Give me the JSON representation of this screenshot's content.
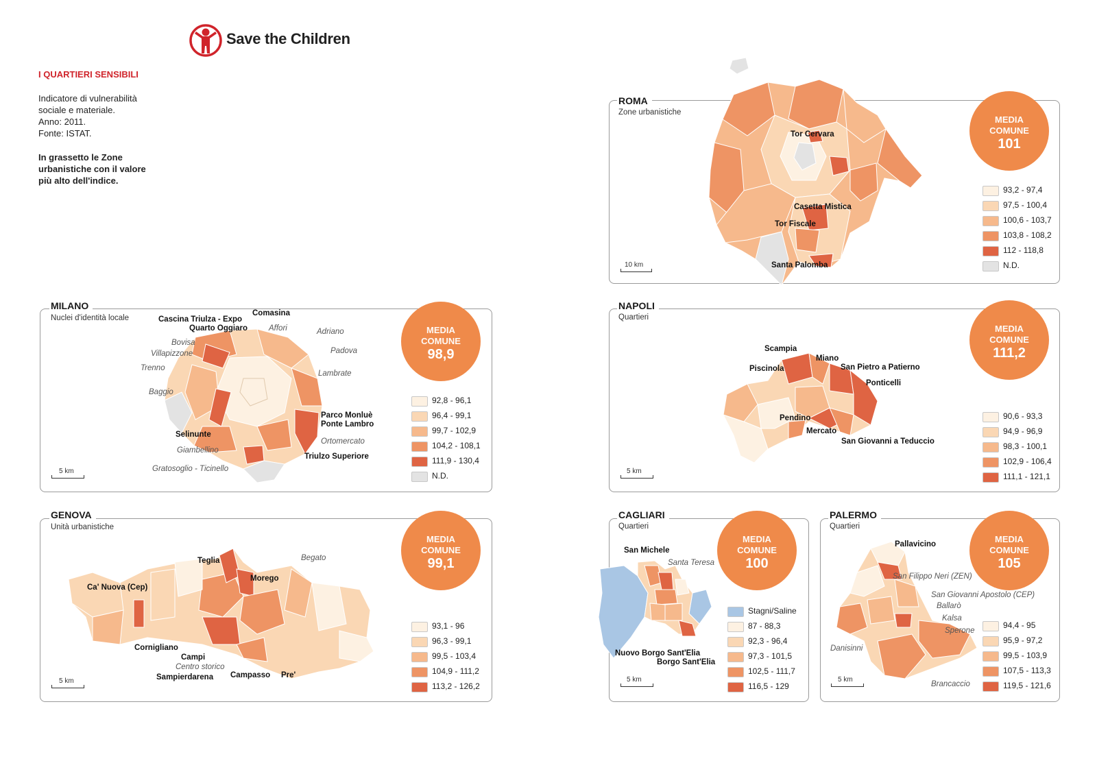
{
  "header": {
    "logo_text": "Save the Children",
    "brand_color": "#d0242b",
    "section_title": "I QUARTIERI SENSIBILI",
    "description_lines": [
      "Indicatore di vulnerabilità",
      "sociale e materiale.",
      "Anno: 2011.",
      "Fonte: ISTAT."
    ],
    "note_lines": [
      "In grassetto le Zone",
      "urbanistiche con il valore",
      "più alto dell'indice."
    ]
  },
  "palette": {
    "class1": "#fdf1e2",
    "class2": "#fad7b4",
    "class3": "#f6b98c",
    "class4": "#ee9464",
    "class5": "#df6443",
    "nd": "#e3e3e3",
    "stagni": "#a9c6e4",
    "accent": "#ef8a4a"
  },
  "panels": {
    "roma": {
      "city": "ROMA",
      "subtitle": "Zone urbanistiche",
      "media_label": [
        "MEDIA",
        "COMUNE"
      ],
      "media_value": "101",
      "legend": [
        "93,2 - 97,4",
        "97,5 - 100,4",
        "100,6 - 103,7",
        "103,8 - 108,2",
        "112 - 118,8",
        "N.D."
      ],
      "scale": "10 km",
      "labels_bold": [
        "Tor Cervara",
        "Casetta Mistica",
        "Tor Fiscale",
        "Santa Palomba"
      ]
    },
    "milano": {
      "city": "MILANO",
      "subtitle": "Nuclei d'identità locale",
      "media_label": [
        "MEDIA",
        "COMUNE"
      ],
      "media_value": "98,9",
      "legend": [
        "92,8 - 96,1",
        "96,4 - 99,1",
        "99,7 - 102,9",
        "104,2 - 108,1",
        "111,9 - 130,4",
        "N.D."
      ],
      "scale": "5 km",
      "labels_bold": [
        "Comasina",
        "Cascina Triulza - Expo",
        "Quarto Oggiaro",
        "Selinunte",
        "Parco Monluè",
        "Ponte Lambro",
        "Triulzo Superiore"
      ],
      "labels_italic": [
        "Affori",
        "Adriano",
        "Bovisa",
        "Villapizzone",
        "Padova",
        "Trenno",
        "Lambrate",
        "Baggio",
        "Ortomercato",
        "Giambellino",
        "Gratosoglio - Ticinello"
      ]
    },
    "napoli": {
      "city": "NAPOLI",
      "subtitle": "Quartieri",
      "media_label": [
        "MEDIA",
        "COMUNE"
      ],
      "media_value": "111,2",
      "legend": [
        "90,6 - 93,3",
        "94,9 - 96,9",
        "98,3 - 100,1",
        "102,9 - 106,4",
        "111,1 - 121,1"
      ],
      "scale": "5 km",
      "labels_bold": [
        "Scampia",
        "Miano",
        "Piscinola",
        "San Pietro a Patierno",
        "Ponticelli",
        "Pendino",
        "Mercato",
        "San Giovanni a Teduccio"
      ]
    },
    "genova": {
      "city": "GENOVA",
      "subtitle": "Unità urbanistiche",
      "media_label": [
        "MEDIA",
        "COMUNE"
      ],
      "media_value": "99,1",
      "legend": [
        "93,1 - 96",
        "96,3 - 99,1",
        "99,5 - 103,4",
        "104,9 - 111,2",
        "113,2 - 126,2"
      ],
      "scale": "5 km",
      "labels_bold": [
        "Teglia",
        "Morego",
        "Ca' Nuova (Cep)",
        "Cornigliano",
        "Campi",
        "Sampierdarena",
        "Campasso",
        "Pre'"
      ],
      "labels_italic": [
        "Begato",
        "Centro storico"
      ]
    },
    "cagliari": {
      "city": "CAGLIARI",
      "subtitle": "Quartieri",
      "media_label": [
        "MEDIA",
        "COMUNE"
      ],
      "media_value": "100",
      "legend": [
        "Stagni/Saline",
        "87 - 88,3",
        "92,3 - 96,4",
        "97,3 - 101,5",
        "102,5 - 111,7",
        "116,5 - 129"
      ],
      "scale": "5 km",
      "labels_bold": [
        "San Michele",
        "Nuovo Borgo Sant'Elia",
        "Borgo Sant'Elia"
      ],
      "labels_italic": [
        "Santa Teresa"
      ]
    },
    "palermo": {
      "city": "PALERMO",
      "subtitle": "Quartieri",
      "media_label": [
        "MEDIA",
        "COMUNE"
      ],
      "media_value": "105",
      "legend": [
        "94,4 - 95",
        "95,9 - 97,2",
        "99,5 - 103,9",
        "107,5 - 113,3",
        "119,5 - 121,6"
      ],
      "scale": "5 km",
      "labels_bold": [
        "Pallavicino"
      ],
      "labels_italic": [
        "San Filippo Neri (ZEN)",
        "San Giovanni Apostolo (CEP)",
        "Ballarò",
        "Kalsa",
        "Sperone",
        "Danisinni",
        "Brancaccio"
      ]
    }
  }
}
